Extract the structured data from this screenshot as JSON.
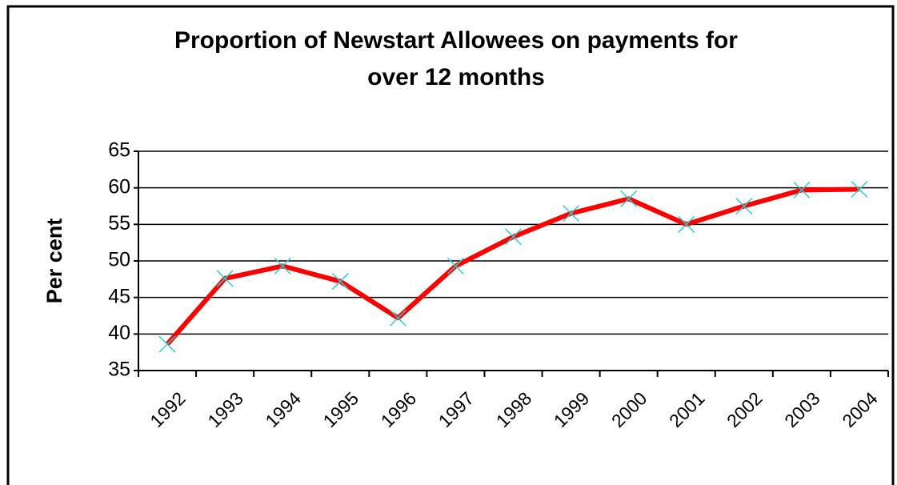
{
  "chart_data": {
    "type": "line",
    "title": "Proportion of Newstart Allowees on payments for",
    "subtitle": "over 12 months",
    "y_label": "Per cent",
    "categories": [
      "1992",
      "1993",
      "1994",
      "1995",
      "1996",
      "1997",
      "1998",
      "1999",
      "2000",
      "2001",
      "2002",
      "2003",
      "2004"
    ],
    "series": [
      {
        "name": "Proportion",
        "color": "#ff0000",
        "marker_color": "#33cccc",
        "values": [
          38.6,
          47.6,
          49.3,
          47.2,
          42.2,
          49.3,
          53.3,
          56.5,
          58.5,
          55.0,
          57.5,
          59.7,
          59.8
        ]
      }
    ],
    "ylim": [
      35,
      65
    ],
    "yticks": [
      35,
      40,
      45,
      50,
      55,
      60,
      65
    ],
    "grid": true
  }
}
